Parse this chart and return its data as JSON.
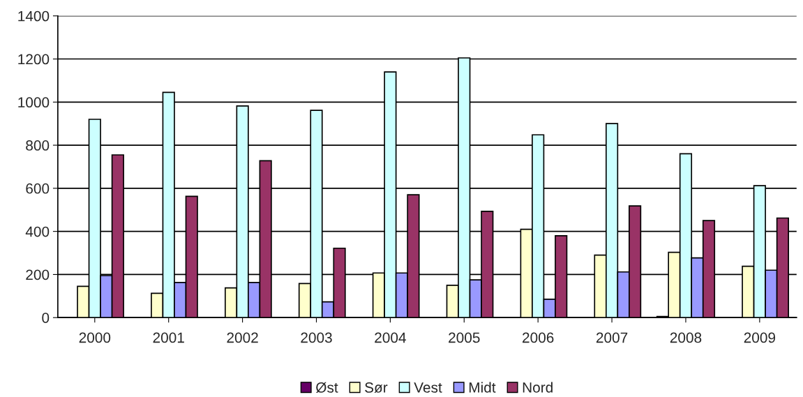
{
  "chart_data": {
    "type": "bar",
    "categories": [
      "2000",
      "2001",
      "2002",
      "2003",
      "2004",
      "2005",
      "2006",
      "2007",
      "2008",
      "2009"
    ],
    "series": [
      {
        "name": "Øst",
        "color": "#660066",
        "values": [
          null,
          null,
          null,
          null,
          null,
          null,
          null,
          null,
          5,
          null
        ]
      },
      {
        "name": "Sør",
        "color": "#ffffcc",
        "values": [
          145,
          113,
          138,
          158,
          207,
          150,
          410,
          290,
          303,
          238
        ]
      },
      {
        "name": "Vest",
        "color": "#ccffff",
        "values": [
          920,
          1045,
          982,
          962,
          1140,
          1205,
          848,
          900,
          760,
          612
        ]
      },
      {
        "name": "Midt",
        "color": "#9999ff",
        "values": [
          195,
          163,
          163,
          73,
          207,
          175,
          85,
          212,
          277,
          220
        ]
      },
      {
        "name": "Nord",
        "color": "#993366",
        "values": [
          755,
          563,
          728,
          322,
          570,
          493,
          380,
          518,
          450,
          462
        ]
      }
    ],
    "ylim": [
      0,
      1400
    ],
    "yticks": [
      0,
      200,
      400,
      600,
      800,
      1000,
      1200,
      1400
    ],
    "grid": "y",
    "legend": "bottom"
  }
}
